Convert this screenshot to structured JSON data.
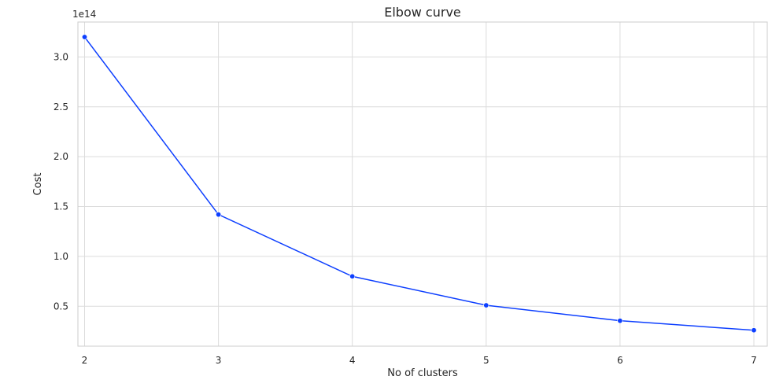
{
  "chart_data": {
    "type": "line",
    "title": "Elbow curve",
    "xlabel": "No of clusters",
    "ylabel": "Cost",
    "y_offset_label": "1e14",
    "x": [
      2,
      3,
      4,
      5,
      6,
      7
    ],
    "series": [
      {
        "values": [
          3.2,
          1.42,
          0.8,
          0.51,
          0.355,
          0.26
        ],
        "color": "#0d3fff",
        "marker": "circle"
      }
    ],
    "xlim": [
      1.95,
      7.1
    ],
    "ylim": [
      0.1,
      3.35
    ],
    "x_ticks": [
      2,
      3,
      4,
      5,
      6,
      7
    ],
    "y_ticks": [
      0.5,
      1.0,
      1.5,
      2.0,
      2.5,
      3.0
    ],
    "y_tick_labels": [
      "0.5",
      "1.0",
      "1.5",
      "2.0",
      "2.5",
      "3.0"
    ],
    "grid": true,
    "grid_color": "#dcdcdc",
    "frame_color": "#cccccc"
  }
}
